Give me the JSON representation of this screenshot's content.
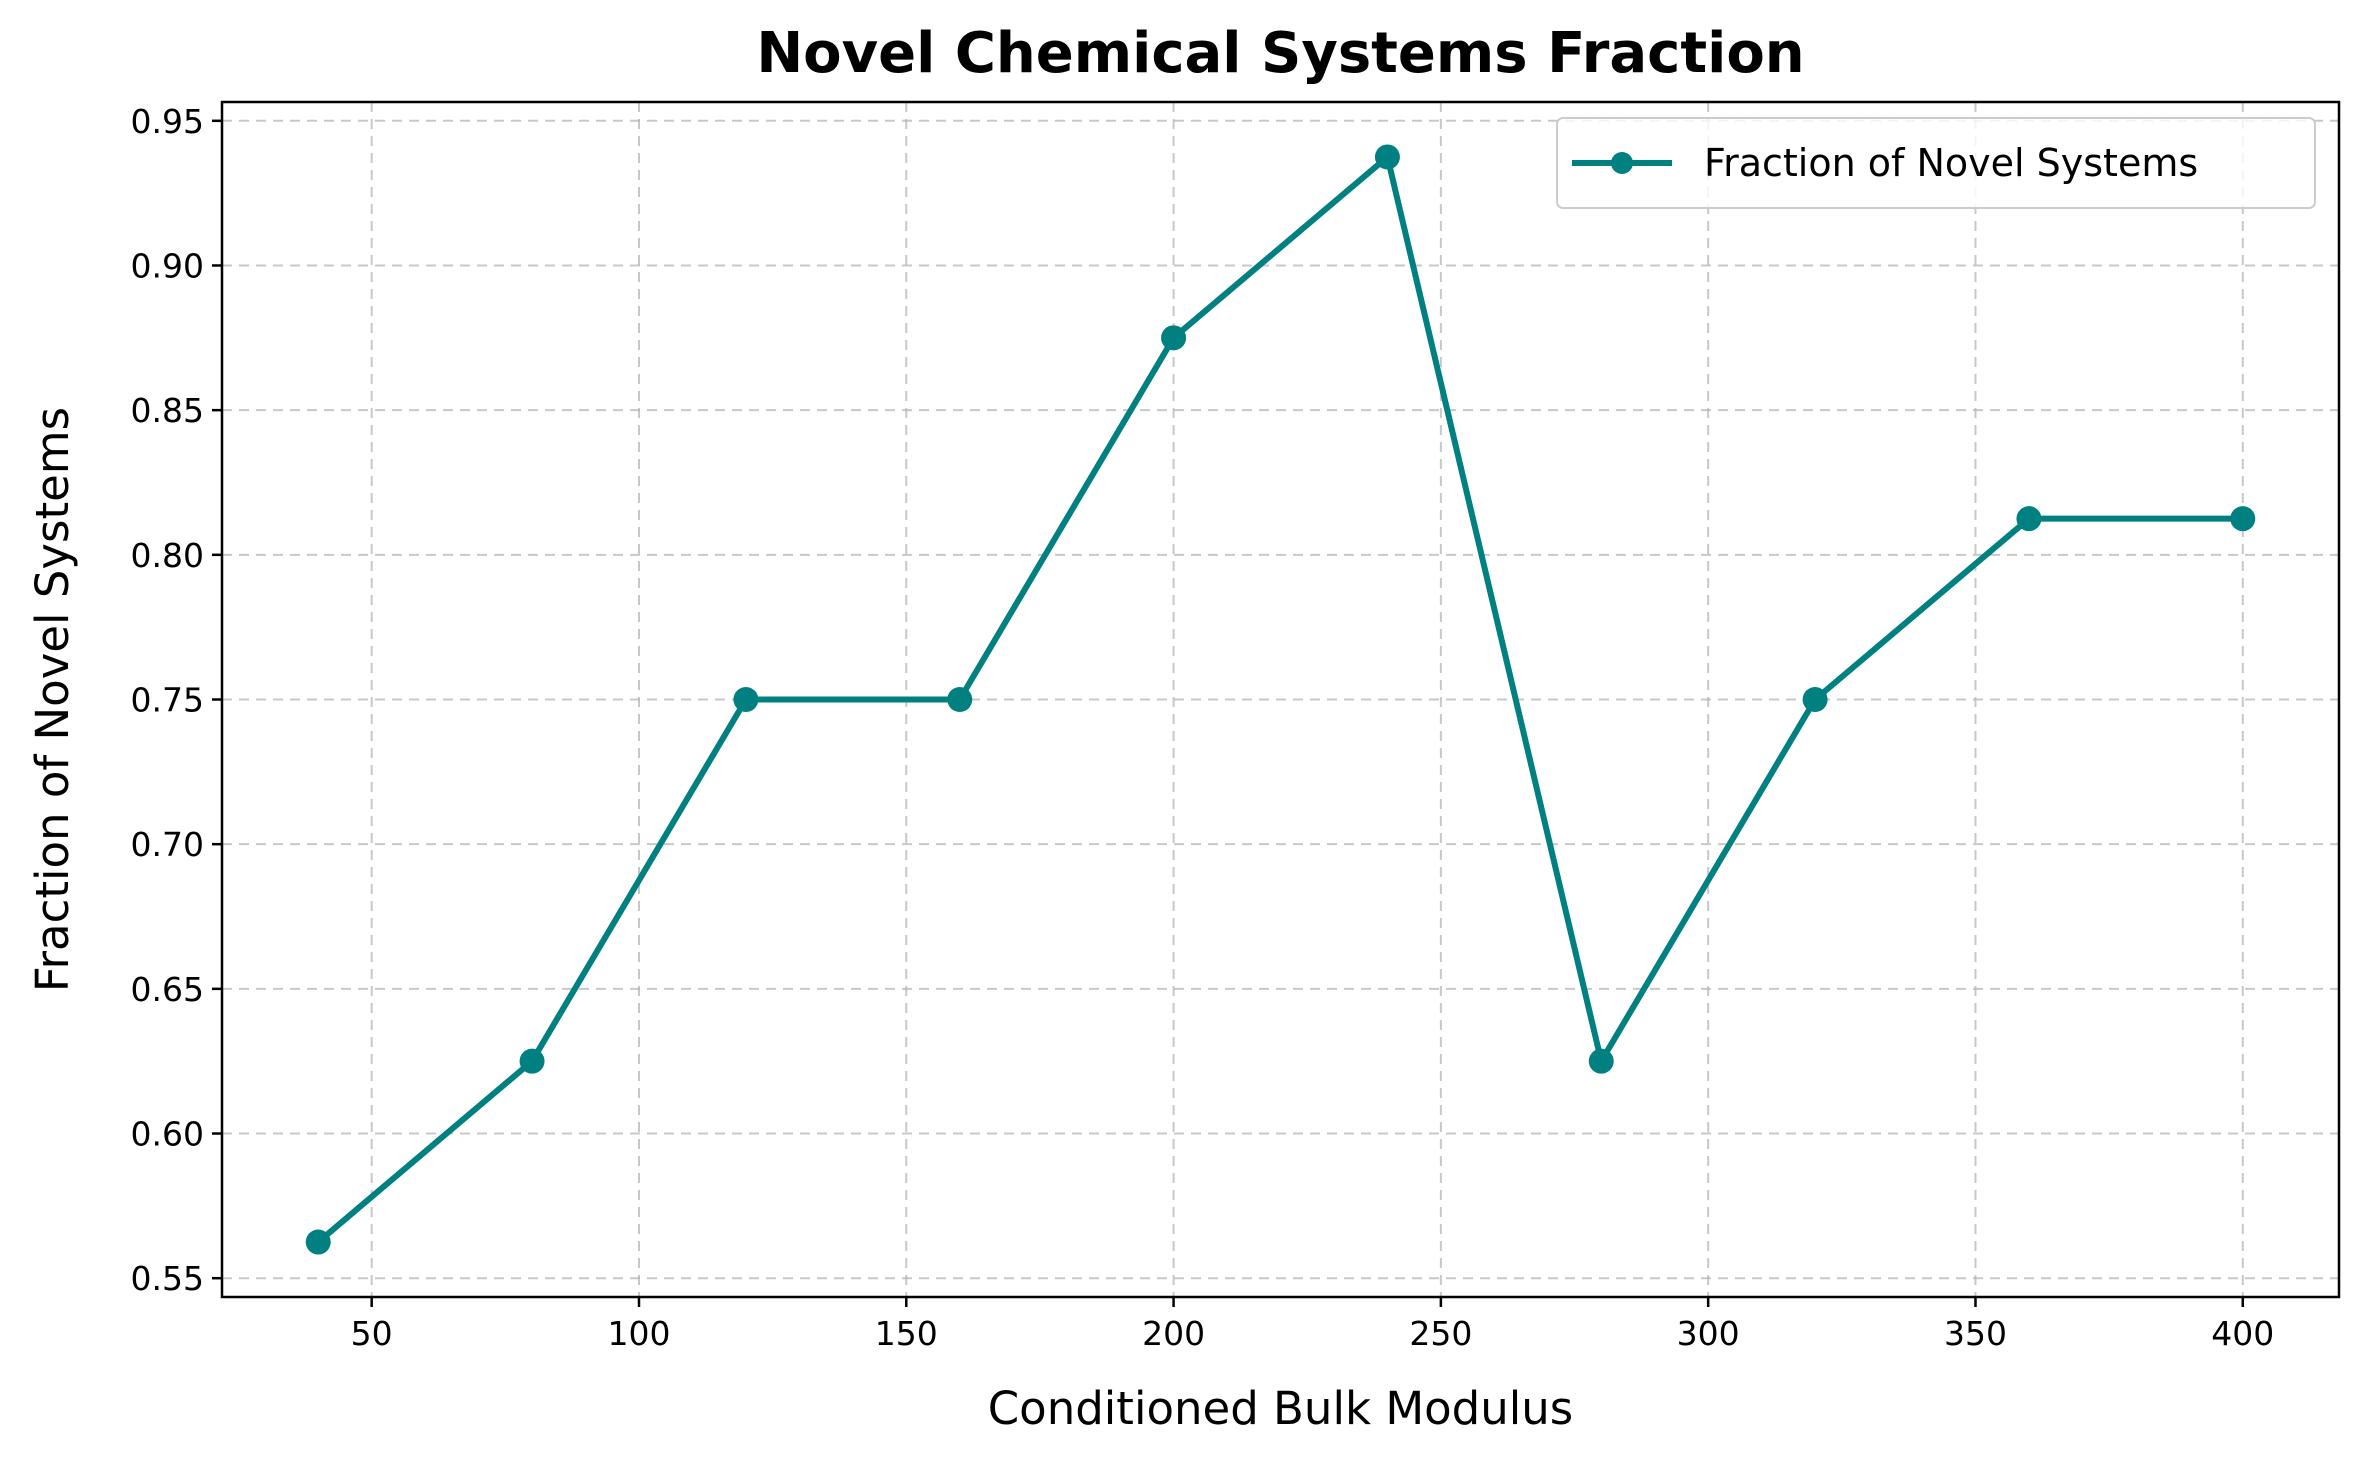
{
  "chart_data": {
    "type": "line",
    "title": "Novel Chemical Systems Fraction",
    "xlabel": "Conditioned Bulk Modulus",
    "ylabel": "Fraction of Novel Systems",
    "x": [
      40,
      80,
      120,
      160,
      200,
      240,
      280,
      320,
      360,
      400
    ],
    "series": [
      {
        "name": "Fraction of Novel Systems",
        "values": [
          0.5625,
          0.625,
          0.75,
          0.75,
          0.875,
          0.9375,
          0.625,
          0.75,
          0.8125,
          0.8125
        ],
        "color": "#008080",
        "marker": "circle"
      }
    ],
    "xlim": [
      22,
      418
    ],
    "ylim": [
      0.5435,
      0.9565
    ],
    "xticks": [
      50,
      100,
      150,
      200,
      250,
      300,
      350,
      400
    ],
    "yticks": [
      0.55,
      0.6,
      0.65,
      0.7,
      0.75,
      0.8,
      0.85,
      0.9,
      0.95
    ],
    "xtick_labels": [
      "50",
      "100",
      "150",
      "200",
      "250",
      "300",
      "350",
      "400"
    ],
    "ytick_labels": [
      "0.55",
      "0.60",
      "0.65",
      "0.70",
      "0.75",
      "0.80",
      "0.85",
      "0.90",
      "0.95"
    ],
    "grid": true,
    "grid_style": "dashed",
    "legend_position": "upper right"
  }
}
